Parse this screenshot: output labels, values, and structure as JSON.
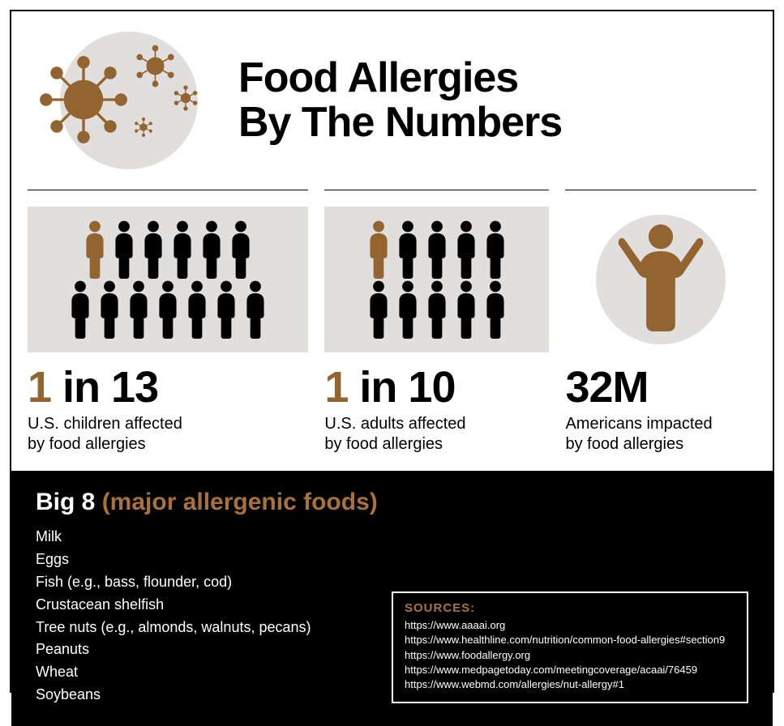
{
  "colors": {
    "accent": "#936430",
    "accent_light": "#a9723a",
    "icon_bg": "#e0dfde",
    "black": "#000000",
    "white": "#ffffff"
  },
  "title": "Food Allergies\nBy The Numbers",
  "stats": [
    {
      "type": "people",
      "total": 13,
      "highlighted": 1,
      "rows": [
        6,
        7
      ],
      "number_accent": "1",
      "number_rest": " in 13",
      "label": "U.S. children affected\nby food allergies"
    },
    {
      "type": "people",
      "total": 10,
      "highlighted": 1,
      "rows": [
        5,
        5
      ],
      "number_accent": "1",
      "number_rest": " in 10",
      "label": "U.S. adults affected\nby food allergies"
    },
    {
      "type": "single",
      "number_accent": "",
      "number_rest": "32M",
      "label": "Americans impacted\nby food allergies"
    }
  ],
  "big8": {
    "title_main": "Big 8 ",
    "title_accent": "(major allergenic foods)",
    "items": [
      "Milk",
      "Eggs",
      "Fish (e.g., bass, flounder, cod)",
      "Crustacean shelfish",
      "Tree nuts (e.g., almonds, walnuts, pecans)",
      "Peanuts",
      "Wheat",
      "Soybeans"
    ]
  },
  "sources": {
    "title": "SOURCES:",
    "items": [
      "https://www.aaaai.org",
      "https://www.healthline.com/nutrition/common-food-allergies#section9",
      "https://www.foodallergy.org",
      "https://www.medpagetoday.com/meetingcoverage/acaai/76459",
      "https://www.webmd.com/allergies/nut-allergy#1"
    ]
  },
  "icon_sizes": {
    "person_small_w": 28,
    "person_small_h": 70,
    "virus_large": 110,
    "virus_med": 55,
    "virus_small": 30
  }
}
